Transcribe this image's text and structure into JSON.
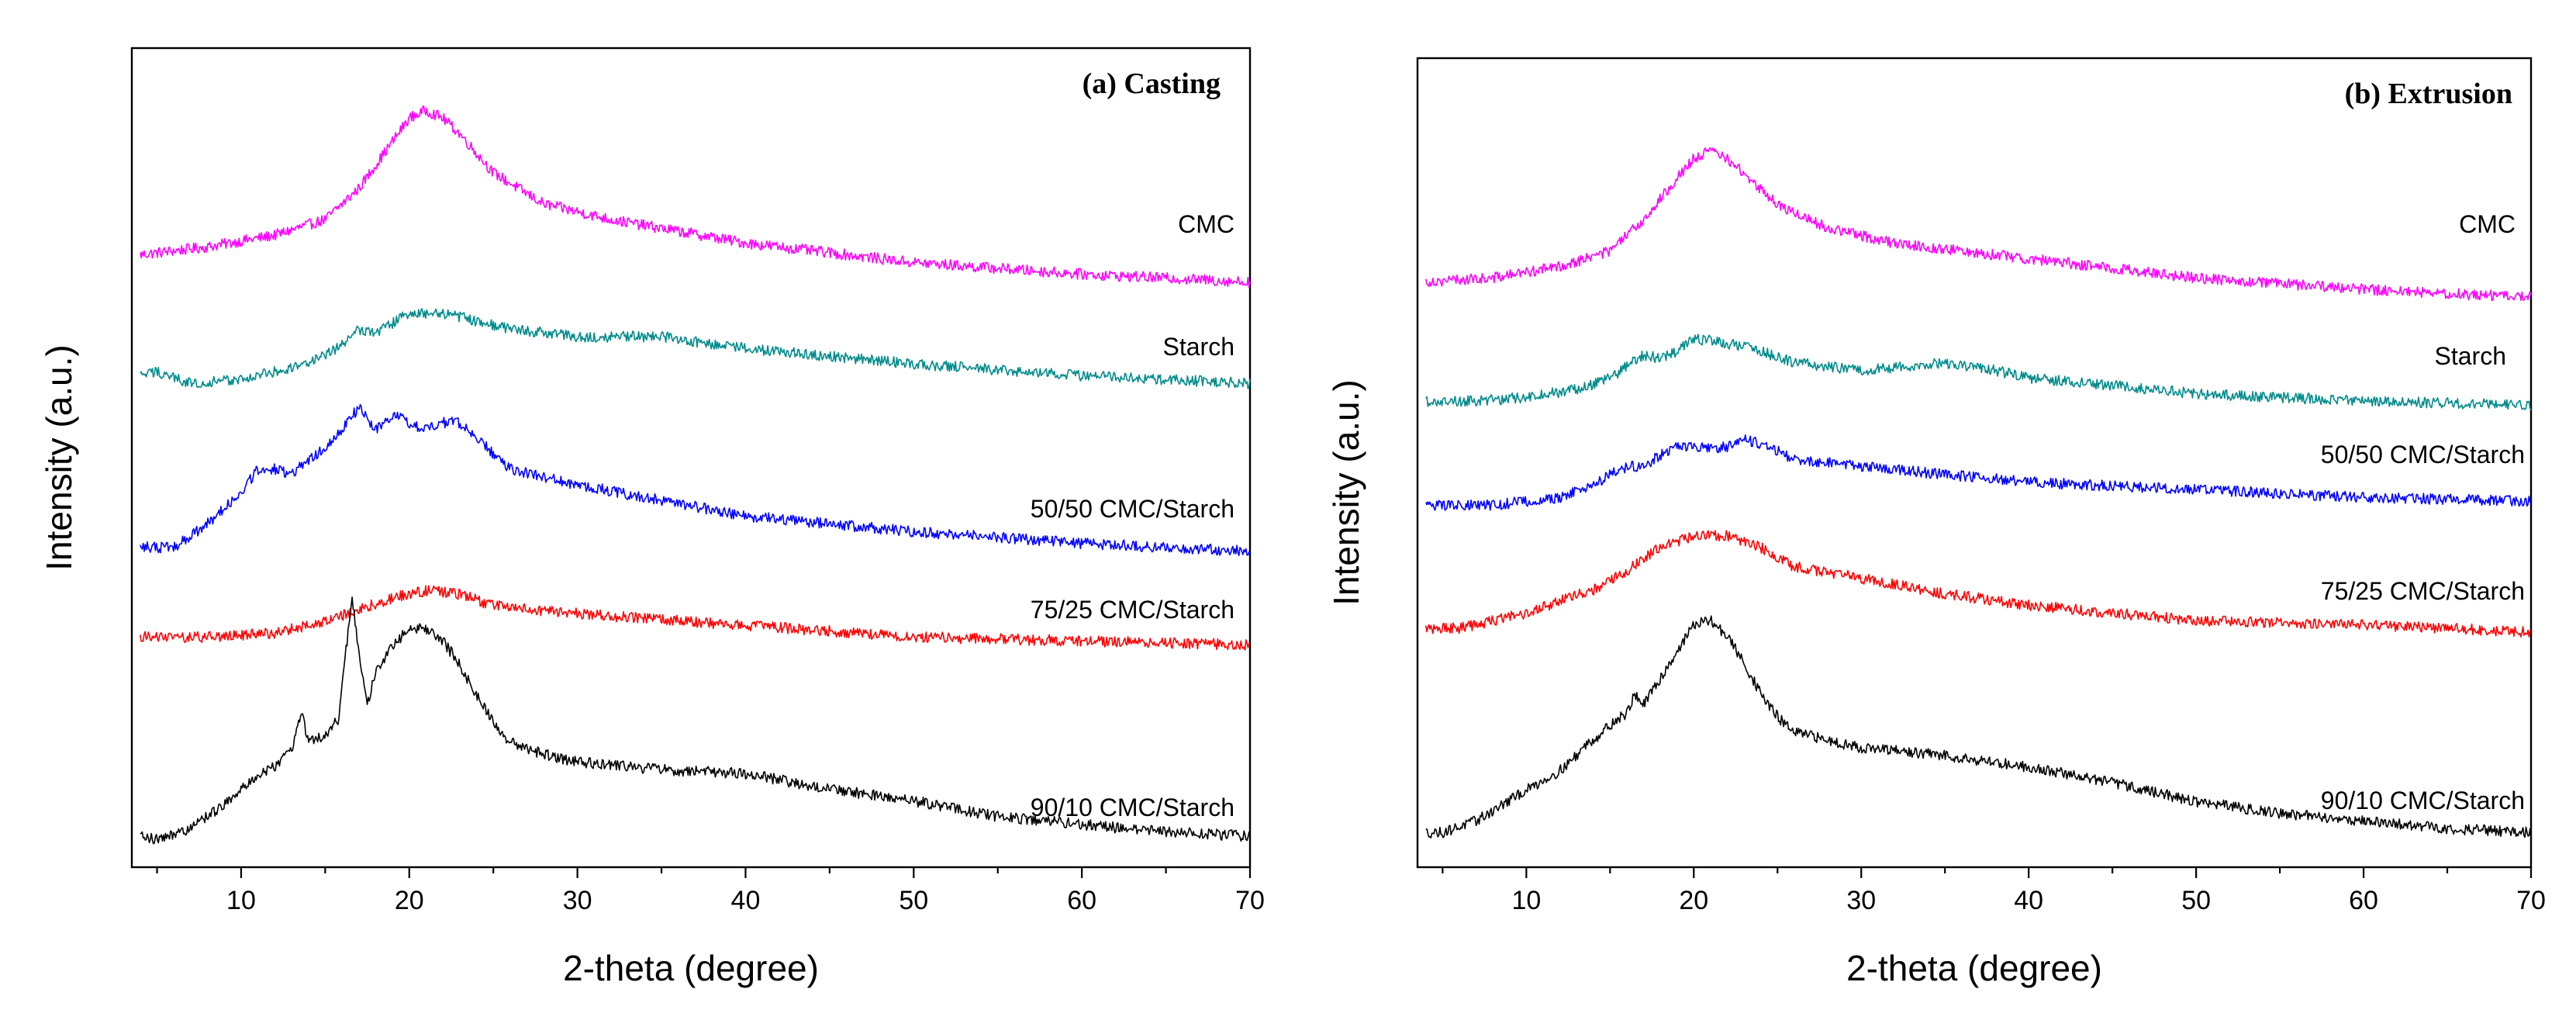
{
  "chart_data": [
    {
      "type": "line",
      "title": "(a) Casting",
      "xlabel": "2-theta (degree)",
      "ylabel": "Intensity (a.u.)",
      "xlim": [
        3.5,
        70
      ],
      "xticks": [
        10,
        20,
        30,
        40,
        50,
        60,
        70
      ],
      "xtick_labels": [
        "10",
        "20",
        "30",
        "40",
        "50",
        "60",
        "70"
      ],
      "ylim": [
        0,
        100
      ],
      "yticks_shown": false,
      "series": [
        {
          "name": "CMC",
          "color": "#ff00ff",
          "x": [
            4,
            8,
            12,
            15,
            17,
            19,
            20,
            21,
            22,
            23,
            25,
            28,
            32,
            40,
            50,
            60,
            70
          ],
          "values": [
            77.5,
            78.5,
            80,
            82,
            86,
            92,
            95,
            96,
            95,
            93,
            88,
            84,
            82,
            79,
            76.5,
            75,
            74
          ]
        },
        {
          "name": "Starch",
          "color": "#008b8b",
          "x": [
            4,
            5,
            7,
            10,
            13,
            15,
            16,
            17,
            18,
            20,
            22,
            24,
            26,
            30,
            35,
            40,
            50,
            60,
            70
          ],
          "values": [
            62,
            62.5,
            61,
            61.5,
            63,
            64.5,
            66,
            68,
            67.5,
            70,
            70,
            69,
            68,
            67,
            67,
            65.5,
            63.5,
            62,
            61
          ]
        },
        {
          "name": "50/50 CMC/Starch",
          "color": "#0000ff",
          "x": [
            4,
            6,
            8,
            10,
            11,
            12,
            13,
            14,
            15,
            16,
            17,
            18,
            19,
            20,
            21,
            22,
            23,
            24,
            26,
            30,
            35,
            40,
            50,
            60,
            70
          ],
          "values": [
            40,
            40,
            43,
            47,
            50,
            50,
            49.5,
            51,
            53,
            55,
            58,
            55,
            57,
            56,
            55,
            56,
            56,
            54,
            50,
            48,
            46,
            44,
            42,
            40.5,
            39.5
          ]
        },
        {
          "name": "75/25 CMC/Starch",
          "color": "#ff0000",
          "x": [
            4,
            8,
            12,
            15,
            17,
            19,
            21,
            23,
            25,
            30,
            40,
            50,
            60,
            70
          ],
          "values": [
            28.5,
            28.5,
            29,
            30.5,
            32,
            33.5,
            34.5,
            34,
            32.5,
            31.5,
            30,
            28.5,
            28,
            27.5
          ]
        },
        {
          "name": "90/10 CMC/Starch",
          "color": "#000000",
          "x": [
            4,
            5,
            7,
            9,
            10,
            11,
            12,
            13,
            13.6,
            14,
            14.5,
            15,
            15.8,
            16.2,
            16.6,
            17,
            17.5,
            18,
            19,
            20,
            21,
            22,
            23,
            24,
            25,
            26,
            28,
            30,
            35,
            40,
            45,
            50,
            55,
            60,
            65,
            70
          ],
          "values": [
            3,
            2.5,
            4,
            7,
            9,
            10.5,
            12,
            14,
            19,
            15,
            15.5,
            16,
            18,
            26,
            34,
            26,
            20,
            24,
            27.5,
            29.5,
            29.5,
            28,
            25,
            21,
            17.5,
            15,
            13.5,
            12.5,
            11.5,
            11,
            9,
            7.5,
            5.5,
            4.5,
            3.5,
            3
          ]
        }
      ]
    },
    {
      "type": "line",
      "title": "(b) Extrusion",
      "xlabel": "2-theta (degree)",
      "ylabel": "Intensity (a.u.)",
      "xlim": [
        3.5,
        70
      ],
      "xticks": [
        10,
        20,
        30,
        40,
        50,
        60,
        70
      ],
      "xtick_labels": [
        "10",
        "20",
        "30",
        "40",
        "50",
        "60",
        "70"
      ],
      "ylim": [
        0,
        100
      ],
      "yticks_shown": false,
      "series": [
        {
          "name": "CMC",
          "color": "#ff00ff",
          "x": [
            4,
            8,
            12,
            15,
            17,
            19,
            20,
            21,
            22,
            23,
            25,
            28,
            32,
            40,
            50,
            60,
            70
          ],
          "values": [
            75,
            75.5,
            77,
            79,
            83,
            88.5,
            91,
            92,
            91,
            89,
            85,
            82,
            80,
            78,
            75.5,
            74,
            73
          ]
        },
        {
          "name": "Starch",
          "color": "#008b8b",
          "x": [
            4,
            7,
            10,
            13,
            15,
            16,
            17,
            18,
            19,
            20,
            21,
            22,
            24,
            26,
            30,
            33,
            35,
            38,
            40,
            50,
            60,
            70
          ],
          "values": [
            59.5,
            59.5,
            60,
            61,
            62.5,
            64,
            65.5,
            65,
            66,
            67.5,
            67.5,
            67,
            66,
            64.5,
            63.5,
            64,
            64.5,
            63.5,
            62.5,
            60.5,
            59.5,
            59
          ]
        },
        {
          "name": "50/50 CMC/Starch",
          "color": "#0000ff",
          "x": [
            4,
            8,
            12,
            14,
            15,
            16,
            17,
            18,
            19,
            20,
            22,
            23,
            24,
            26,
            30,
            35,
            40,
            50,
            60,
            70
          ],
          "values": [
            46,
            46,
            47,
            48.5,
            50,
            51,
            51,
            52.5,
            53.5,
            53.5,
            53.5,
            54.5,
            54,
            52,
            51,
            50,
            49,
            48,
            47,
            46.5
          ]
        },
        {
          "name": "75/25 CMC/Starch",
          "color": "#ff0000",
          "x": [
            4,
            6,
            10,
            14,
            16,
            18,
            20,
            22,
            24,
            26,
            30,
            35,
            40,
            50,
            60,
            70
          ],
          "values": [
            30,
            30,
            32,
            35,
            37.5,
            40.5,
            42,
            42,
            40.5,
            38,
            36.5,
            34.5,
            33,
            31,
            30.5,
            29.5
          ]
        },
        {
          "name": "90/10 CMC/Starch",
          "color": "#000000",
          "x": [
            4,
            5,
            7,
            10,
            12,
            13,
            13.6,
            14,
            15,
            16,
            16.5,
            17,
            18,
            19,
            20,
            21,
            22,
            23,
            24,
            25,
            26,
            28,
            30,
            35,
            40,
            45,
            50,
            55,
            60,
            65,
            70
          ],
          "values": [
            3.5,
            3.5,
            5,
            9,
            11.5,
            13.5,
            15,
            15.5,
            17.5,
            19,
            21.5,
            20,
            23.5,
            27,
            30.5,
            31,
            29,
            25.5,
            21.5,
            18.5,
            16.5,
            15.5,
            14.5,
            13.5,
            12,
            10,
            7.5,
            6,
            5,
            4,
            3.5
          ]
        }
      ]
    }
  ]
}
